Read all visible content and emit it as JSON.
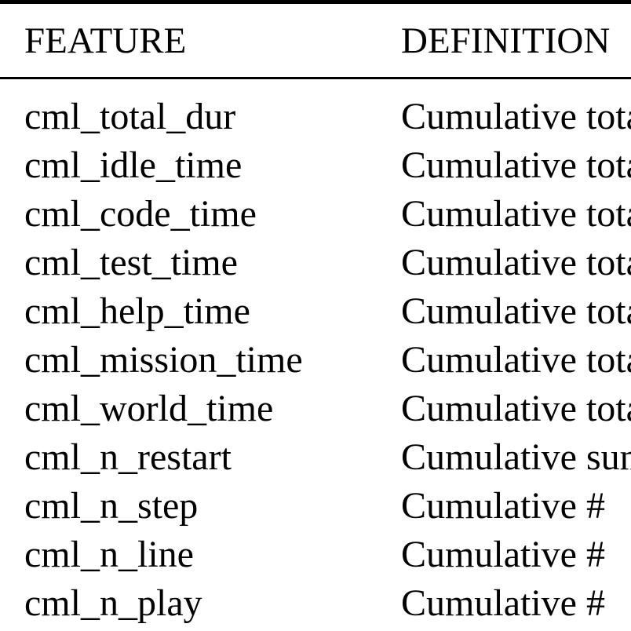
{
  "table": {
    "headers": {
      "feature": "FEATURE",
      "definition": "DEFINITION"
    },
    "rows": [
      {
        "feature": "cml_total_dur",
        "definition": "Cumulative total"
      },
      {
        "feature": "cml_idle_time",
        "definition": "Cumulative total"
      },
      {
        "feature": "cml_code_time",
        "definition": "Cumulative total"
      },
      {
        "feature": "cml_test_time",
        "definition": "Cumulative total"
      },
      {
        "feature": "cml_help_time",
        "definition": "Cumulative total"
      },
      {
        "feature": "cml_mission_time",
        "definition": "Cumulative total"
      },
      {
        "feature": "cml_world_time",
        "definition": "Cumulative total"
      },
      {
        "feature": "cml_n_restart",
        "definition": "Cumulative sum"
      },
      {
        "feature": "cml_n_step",
        "definition": "Cumulative #"
      },
      {
        "feature": "cml_n_line",
        "definition": "Cumulative #"
      },
      {
        "feature": "cml_n_play",
        "definition": "Cumulative #"
      }
    ]
  }
}
